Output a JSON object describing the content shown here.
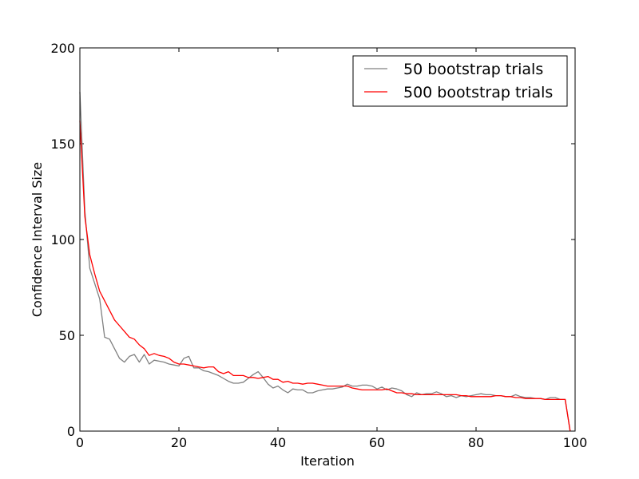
{
  "chart_data": {
    "type": "line",
    "title": "",
    "xlabel": "Iteration",
    "ylabel": "Confidence Interval Size",
    "xlim": [
      0,
      100
    ],
    "ylim": [
      0,
      200
    ],
    "xticks": [
      0,
      20,
      40,
      60,
      80,
      100
    ],
    "yticks": [
      0,
      50,
      100,
      150,
      200
    ],
    "grid": false,
    "legend_position": "top-right",
    "x": [
      0,
      1,
      2,
      3,
      4,
      5,
      6,
      7,
      8,
      9,
      10,
      11,
      12,
      13,
      14,
      15,
      16,
      17,
      18,
      19,
      20,
      21,
      22,
      23,
      24,
      25,
      26,
      27,
      28,
      29,
      30,
      31,
      32,
      33,
      34,
      35,
      36,
      37,
      38,
      39,
      40,
      41,
      42,
      43,
      44,
      45,
      46,
      47,
      48,
      49,
      50,
      51,
      52,
      53,
      54,
      55,
      56,
      57,
      58,
      59,
      60,
      61,
      62,
      63,
      64,
      65,
      66,
      67,
      68,
      69,
      70,
      71,
      72,
      73,
      74,
      75,
      76,
      77,
      78,
      79,
      80,
      81,
      82,
      83,
      84,
      85,
      86,
      87,
      88,
      89,
      90,
      91,
      92,
      93,
      94,
      95,
      96,
      97,
      98,
      99
    ],
    "series": [
      {
        "name": "50 bootstrap trials",
        "color": "#808080",
        "values": [
          177,
          115,
          85,
          77,
          69,
          49,
          48,
          43,
          38,
          36,
          39,
          40,
          36,
          40,
          35,
          37,
          36.5,
          36,
          35,
          34.5,
          34,
          38,
          39,
          33,
          33,
          31.5,
          31,
          30,
          29,
          27.5,
          26,
          25,
          25,
          25.5,
          27.5,
          29.5,
          31,
          28,
          24.5,
          22.5,
          23.5,
          21.5,
          20,
          22,
          21.5,
          21.5,
          20,
          20,
          21,
          21.5,
          22,
          22,
          22.5,
          23,
          24.5,
          23.5,
          23.5,
          24,
          24,
          23.5,
          22,
          23,
          21.5,
          22.5,
          22,
          21,
          19,
          18,
          20,
          19,
          19.5,
          19.5,
          20.5,
          19.5,
          18,
          18.5,
          17.5,
          18.5,
          18,
          18.5,
          19,
          19.5,
          19,
          19,
          18.5,
          18.5,
          18,
          18,
          19,
          18,
          17.5,
          17.5,
          17,
          17,
          16.5,
          17.5,
          17.5,
          16.5,
          16.5,
          0
        ]
      },
      {
        "name": "500 bootstrap trials",
        "color": "#ff0000",
        "values": [
          162,
          112,
          92,
          82,
          73,
          68,
          63,
          58,
          55,
          52,
          49,
          48,
          45,
          43,
          39.5,
          40.5,
          39.5,
          39,
          38,
          36,
          35,
          35,
          34.5,
          34,
          33.5,
          33,
          33.5,
          33.5,
          31,
          30,
          31,
          29,
          29,
          29,
          28,
          28,
          27.5,
          28,
          28.5,
          27,
          27,
          25.5,
          26,
          25,
          25,
          24.5,
          25,
          25,
          24.5,
          24,
          23.5,
          23.5,
          23.5,
          23.5,
          23.5,
          22.5,
          22,
          21.5,
          21.5,
          21.5,
          21.5,
          21.5,
          22,
          21,
          20,
          20,
          19.5,
          19.5,
          19,
          19,
          19,
          19,
          19,
          19,
          19,
          19,
          19,
          18.5,
          18.5,
          18,
          18,
          18,
          18,
          18,
          18.5,
          18.5,
          18,
          18,
          17.5,
          17.5,
          17,
          17,
          17,
          17,
          16.5,
          16.5,
          16.5,
          16.5,
          16.5,
          0
        ]
      }
    ]
  }
}
